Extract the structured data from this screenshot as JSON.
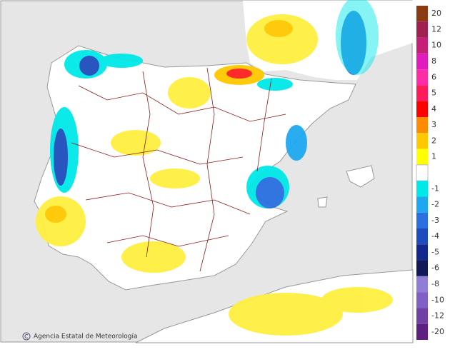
{
  "map": {
    "credit": "Agencia Estatal de Meteorología"
  },
  "legend": {
    "items": [
      {
        "value": 20,
        "color": "#8b3a14"
      },
      {
        "value": 12,
        "color": "#a0204f"
      },
      {
        "value": 10,
        "color": "#c42077"
      },
      {
        "value": 8,
        "color": "#e01cc0"
      },
      {
        "value": 6,
        "color": "#ff2ca8"
      },
      {
        "value": 5,
        "color": "#ff1a5a"
      },
      {
        "value": 4,
        "color": "#ff0000"
      },
      {
        "value": 3,
        "color": "#ff8c00"
      },
      {
        "value": 2,
        "color": "#ffc800"
      },
      {
        "value": 1,
        "color": "#ffff00"
      },
      {
        "value": -1,
        "color": "#00e8e8"
      },
      {
        "value": -2,
        "color": "#1ea8f0"
      },
      {
        "value": -3,
        "color": "#2a70e0"
      },
      {
        "value": -4,
        "color": "#1e4cbc"
      },
      {
        "value": -5,
        "color": "#12288c"
      },
      {
        "value": -6,
        "color": "#101858"
      },
      {
        "value": -8,
        "color": "#8e7ed6"
      },
      {
        "value": -10,
        "color": "#8060c4"
      },
      {
        "value": -12,
        "color": "#7040a4"
      },
      {
        "value": -20,
        "color": "#5e2080"
      }
    ]
  }
}
